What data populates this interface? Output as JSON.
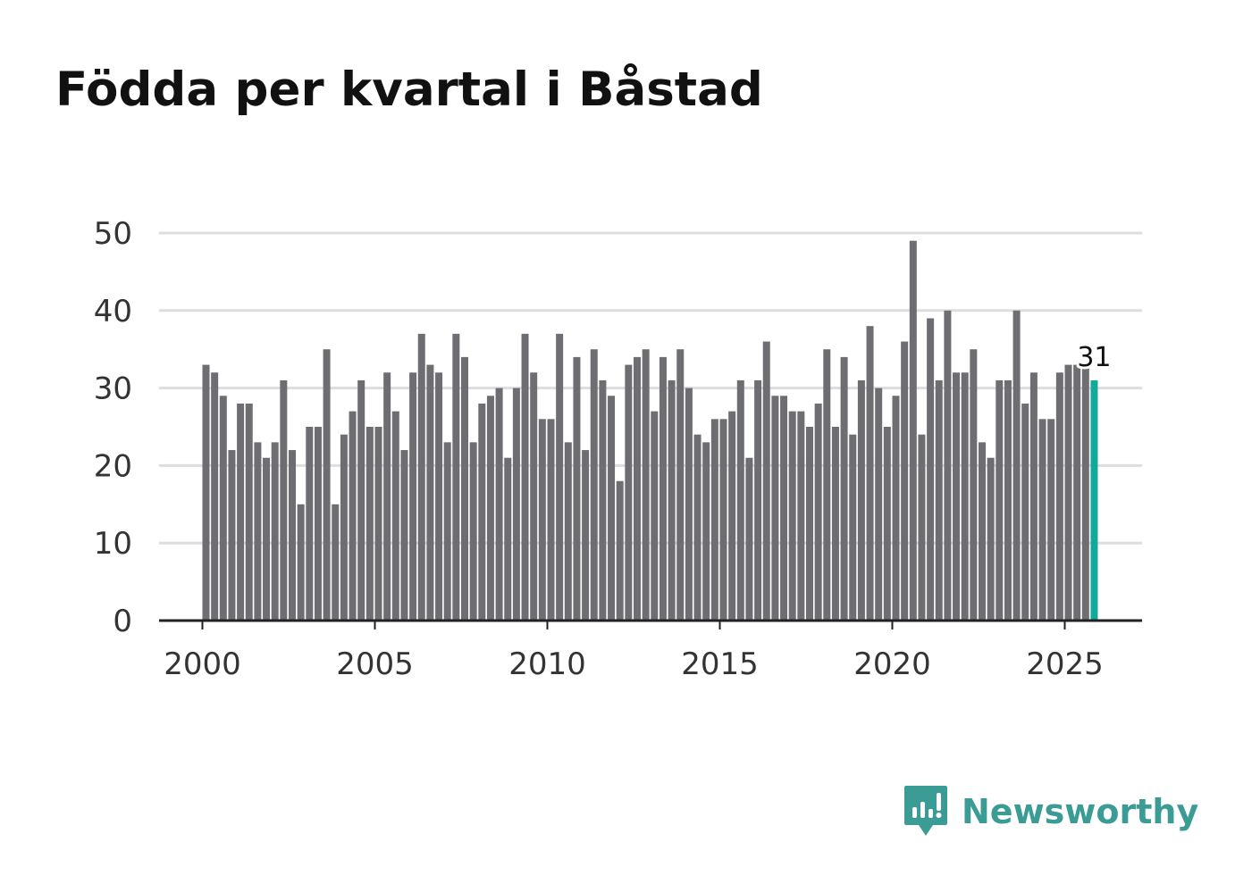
{
  "title": "Födda per kvartal i Båstad",
  "brand": {
    "name": "Newsworthy",
    "icon": "newsworthy-logo-icon",
    "color": "#3a9c94"
  },
  "colors": {
    "bar": "#6e6e72",
    "highlight": "#12a99a",
    "grid": "#dddddd",
    "axis": "#222222"
  },
  "chart_data": {
    "type": "bar",
    "title": "Födda per kvartal i Båstad",
    "xlabel": "",
    "ylabel": "",
    "ylim": [
      0,
      50
    ],
    "yticks": [
      0,
      10,
      20,
      30,
      40,
      50
    ],
    "xticks": [
      "2000",
      "2005",
      "2010",
      "2015",
      "2020",
      "2025"
    ],
    "grid": true,
    "start_year": 2000,
    "quarters_per_year": 4,
    "values": [
      33,
      32,
      29,
      22,
      28,
      28,
      23,
      21,
      23,
      31,
      22,
      15,
      25,
      25,
      35,
      15,
      24,
      27,
      31,
      25,
      25,
      32,
      27,
      22,
      32,
      37,
      33,
      32,
      23,
      37,
      34,
      23,
      28,
      29,
      30,
      21,
      30,
      37,
      32,
      26,
      26,
      37,
      23,
      34,
      22,
      35,
      31,
      29,
      18,
      33,
      34,
      35,
      27,
      34,
      31,
      35,
      30,
      24,
      23,
      26,
      26,
      27,
      31,
      21,
      31,
      36,
      29,
      29,
      27,
      27,
      25,
      28,
      35,
      25,
      34,
      24,
      31,
      38,
      30,
      25,
      29,
      36,
      49,
      24,
      39,
      31,
      40,
      32,
      32,
      35,
      23,
      21,
      31,
      31,
      40,
      28,
      32,
      26,
      26,
      32,
      33,
      33,
      33,
      31
    ],
    "highlight_last": true,
    "last_value_label": "31"
  }
}
